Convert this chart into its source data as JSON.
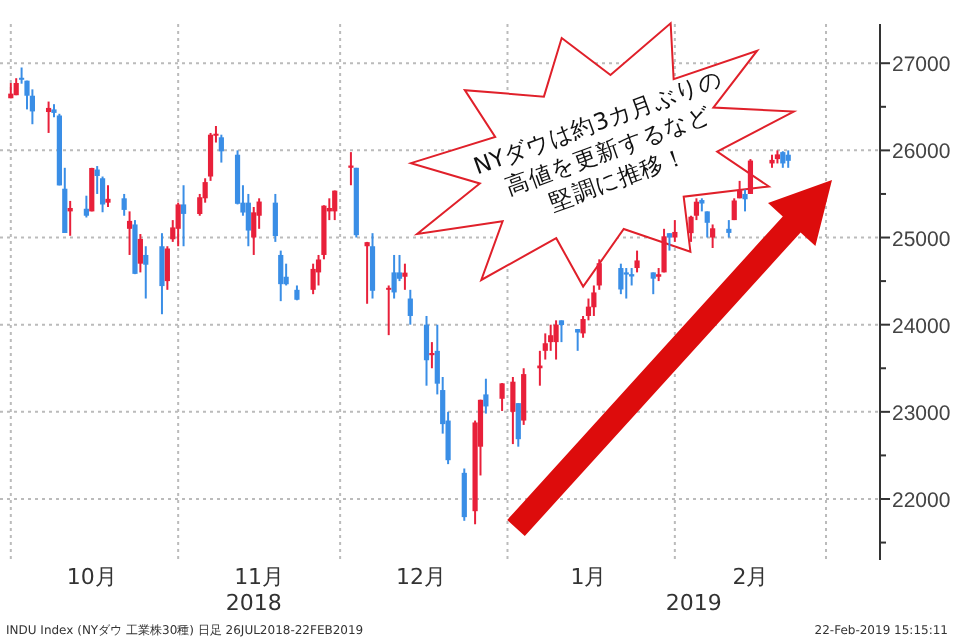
{
  "chart_data": {
    "type": "candlestick",
    "x": [
      "2018-10-01",
      "2018-10-02",
      "2018-10-03",
      "2018-10-04",
      "2018-10-05",
      "2018-10-08",
      "2018-10-09",
      "2018-10-10",
      "2018-10-11",
      "2018-10-12",
      "2018-10-15",
      "2018-10-16",
      "2018-10-17",
      "2018-10-18",
      "2018-10-19",
      "2018-10-22",
      "2018-10-23",
      "2018-10-24",
      "2018-10-25",
      "2018-10-26",
      "2018-10-29",
      "2018-10-30",
      "2018-10-31",
      "2018-11-01",
      "2018-11-02",
      "2018-11-05",
      "2018-11-06",
      "2018-11-07",
      "2018-11-08",
      "2018-11-09",
      "2018-11-12",
      "2018-11-13",
      "2018-11-14",
      "2018-11-15",
      "2018-11-16",
      "2018-11-19",
      "2018-11-20",
      "2018-11-21",
      "2018-11-23",
      "2018-11-26",
      "2018-11-27",
      "2018-11-28",
      "2018-11-29",
      "2018-11-30",
      "2018-12-03",
      "2018-12-04",
      "2018-12-06",
      "2018-12-07",
      "2018-12-10",
      "2018-12-11",
      "2018-12-12",
      "2018-12-13",
      "2018-12-14",
      "2018-12-17",
      "2018-12-18",
      "2018-12-19",
      "2018-12-20",
      "2018-12-21",
      "2018-12-24",
      "2018-12-26",
      "2018-12-27",
      "2018-12-28",
      "2018-12-31",
      "2019-01-02",
      "2019-01-03",
      "2019-01-04",
      "2019-01-07",
      "2019-01-08",
      "2019-01-09",
      "2019-01-10",
      "2019-01-11",
      "2019-01-14",
      "2019-01-15",
      "2019-01-16",
      "2019-01-17",
      "2019-01-18",
      "2019-01-22",
      "2019-01-23",
      "2019-01-24",
      "2019-01-25",
      "2019-01-28",
      "2019-01-29",
      "2019-01-30",
      "2019-01-31",
      "2019-02-01",
      "2019-02-04",
      "2019-02-05",
      "2019-02-06",
      "2019-02-07",
      "2019-02-08",
      "2019-02-11",
      "2019-02-12",
      "2019-02-13",
      "2019-02-14",
      "2019-02-15",
      "2019-02-19",
      "2019-02-20",
      "2019-02-21",
      "2019-02-22"
    ],
    "ohlc": [
      [
        26598,
        26773,
        26598,
        26651
      ],
      [
        26633,
        26828,
        26633,
        26773
      ],
      [
        26833,
        26951,
        26765,
        26828
      ],
      [
        26800,
        26800,
        26470,
        26627
      ],
      [
        26627,
        26700,
        26300,
        26447
      ],
      [
        26440,
        26560,
        26200,
        26487
      ],
      [
        26470,
        26530,
        26380,
        26430
      ],
      [
        26400,
        26420,
        25598,
        25598
      ],
      [
        25560,
        25800,
        25052,
        25052
      ],
      [
        25300,
        25420,
        25020,
        25339
      ],
      [
        25330,
        25480,
        25230,
        25250
      ],
      [
        25300,
        25800,
        25300,
        25798
      ],
      [
        25780,
        25820,
        25500,
        25706
      ],
      [
        25680,
        25700,
        25290,
        25379
      ],
      [
        25400,
        25600,
        25350,
        25444
      ],
      [
        25450,
        25500,
        25250,
        25317
      ],
      [
        25100,
        25300,
        24800,
        25191
      ],
      [
        25150,
        25200,
        24580,
        24583
      ],
      [
        24700,
        25040,
        24600,
        24984
      ],
      [
        24800,
        24900,
        24300,
        24688
      ],
      [
        24900,
        25050,
        24120,
        24443
      ],
      [
        24500,
        24900,
        24400,
        24874
      ],
      [
        24980,
        25200,
        24950,
        25116
      ],
      [
        25100,
        25400,
        24900,
        25380
      ],
      [
        25380,
        25600,
        24900,
        25271
      ],
      [
        25270,
        25500,
        25250,
        25462
      ],
      [
        25450,
        25680,
        25400,
        25636
      ],
      [
        25700,
        26200,
        25650,
        26180
      ],
      [
        26180,
        26280,
        26090,
        26191
      ],
      [
        26150,
        26180,
        25860,
        25989
      ],
      [
        25950,
        26000,
        25380,
        25387
      ],
      [
        25400,
        25600,
        25250,
        25287
      ],
      [
        25400,
        25500,
        24900,
        25080
      ],
      [
        25000,
        25350,
        24800,
        25289
      ],
      [
        25250,
        25450,
        25100,
        25413
      ],
      [
        25400,
        25500,
        24950,
        25017
      ],
      [
        24800,
        24850,
        24270,
        24465
      ],
      [
        24550,
        24700,
        24450,
        24464
      ],
      [
        24400,
        24450,
        24280,
        24286
      ],
      [
        24400,
        24700,
        24350,
        24640
      ],
      [
        24600,
        24800,
        24450,
        24748
      ],
      [
        24800,
        25370,
        24750,
        25366
      ],
      [
        25300,
        25450,
        25200,
        25339
      ],
      [
        25300,
        25540,
        25200,
        25538
      ],
      [
        25800,
        25980,
        25600,
        25826
      ],
      [
        25800,
        25800,
        25000,
        25027
      ],
      [
        24900,
        24950,
        24240,
        24947
      ],
      [
        24900,
        25050,
        24300,
        24389
      ],
      [
        24400,
        24450,
        23880,
        24423
      ],
      [
        24600,
        24800,
        24300,
        24370
      ],
      [
        24600,
        24800,
        24500,
        24527
      ],
      [
        24550,
        24700,
        24400,
        24597
      ],
      [
        24300,
        24400,
        24000,
        24100
      ],
      [
        24000,
        24100,
        23300,
        23592
      ],
      [
        23650,
        23800,
        23500,
        23675
      ],
      [
        23700,
        24000,
        23200,
        23323
      ],
      [
        23250,
        23400,
        22750,
        22859
      ],
      [
        22900,
        23000,
        22400,
        22445
      ],
      [
        22300,
        22350,
        21750,
        21792
      ],
      [
        21860,
        22900,
        21710,
        22878
      ],
      [
        22600,
        23140,
        22270,
        23138
      ],
      [
        23200,
        23380,
        22980,
        23062
      ],
      [
        23150,
        23330,
        23010,
        23327
      ],
      [
        23000,
        23400,
        22630,
        23346
      ],
      [
        23100,
        23100,
        22600,
        22686
      ],
      [
        22900,
        23500,
        22850,
        23433
      ],
      [
        23500,
        23700,
        23300,
        23531
      ],
      [
        23700,
        23900,
        23600,
        23787
      ],
      [
        23800,
        24000,
        23700,
        23879
      ],
      [
        23800,
        24050,
        23600,
        24001
      ],
      [
        24050,
        24050,
        23800,
        23996
      ],
      [
        23950,
        23950,
        23700,
        23910
      ],
      [
        23900,
        24100,
        23850,
        24065
      ],
      [
        24100,
        24300,
        24050,
        24207
      ],
      [
        24200,
        24450,
        24100,
        24370
      ],
      [
        24450,
        24750,
        24400,
        24706
      ],
      [
        24650,
        24700,
        24350,
        24404
      ],
      [
        24600,
        24650,
        24300,
        24575
      ],
      [
        24580,
        24650,
        24450,
        24553
      ],
      [
        24650,
        24850,
        24600,
        24737
      ],
      [
        24600,
        24600,
        24350,
        24528
      ],
      [
        24550,
        24650,
        24500,
        24579
      ],
      [
        24600,
        25100,
        24600,
        25014
      ],
      [
        25050,
        25050,
        24850,
        24999
      ],
      [
        25000,
        25200,
        24950,
        25064
      ],
      [
        25050,
        25250,
        24950,
        25239
      ],
      [
        25250,
        25450,
        25200,
        25411
      ],
      [
        25430,
        25450,
        25300,
        25390
      ],
      [
        25300,
        25300,
        25000,
        25169
      ],
      [
        25000,
        25150,
        24880,
        25106
      ],
      [
        25100,
        25200,
        25000,
        25053
      ],
      [
        25200,
        25450,
        25200,
        25425
      ],
      [
        25450,
        25650,
        25450,
        25543
      ],
      [
        25500,
        25550,
        25300,
        25439
      ],
      [
        25500,
        25900,
        25500,
        25883
      ],
      [
        25850,
        25950,
        25800,
        25891
      ],
      [
        25900,
        26000,
        25850,
        25954
      ],
      [
        25980,
        25990,
        25800,
        25850
      ],
      [
        25950,
        26000,
        25800,
        25880
      ]
    ],
    "xlim": [
      "2018-09-29",
      "2019-03-11"
    ],
    "xticks": [
      {
        "value": "2018-10-01",
        "label": null
      },
      {
        "value": "2018-10-16",
        "label": "10月"
      },
      {
        "value": "2018-11-01",
        "label": null
      },
      {
        "value": "2018-11-16",
        "label": "11月"
      },
      {
        "value": "2018-12-01",
        "label": null
      },
      {
        "value": "2018-12-16",
        "label": "12月"
      },
      {
        "value": "2019-01-01",
        "label": null
      },
      {
        "value": "2019-01-16",
        "label": "1月"
      },
      {
        "value": "2019-02-01",
        "label": null
      },
      {
        "value": "2019-02-15",
        "label": "2月"
      },
      {
        "value": "2019-03-01",
        "label": null
      }
    ],
    "ylim": [
      21300,
      27450
    ],
    "yticks": [
      {
        "value": 21500,
        "label": null
      },
      22000,
      {
        "value": 22500,
        "label": null
      },
      23000,
      {
        "value": 23500,
        "label": null
      },
      24000,
      {
        "value": 24500,
        "label": null
      },
      25000,
      {
        "value": 25500,
        "label": null
      },
      26000,
      {
        "value": 26500,
        "label": null
      },
      27000
    ],
    "grid": true,
    "annotations": [
      "2018",
      "2019",
      "NYダウは約3カ月ぶりの\n高値を更新するなど\n堅調に推移！",
      "INDU Index (NYダウ 工業株30種) 日足 26JUL2018-22FEB2019",
      "22-Feb-2019 15:15:11"
    ]
  }
}
